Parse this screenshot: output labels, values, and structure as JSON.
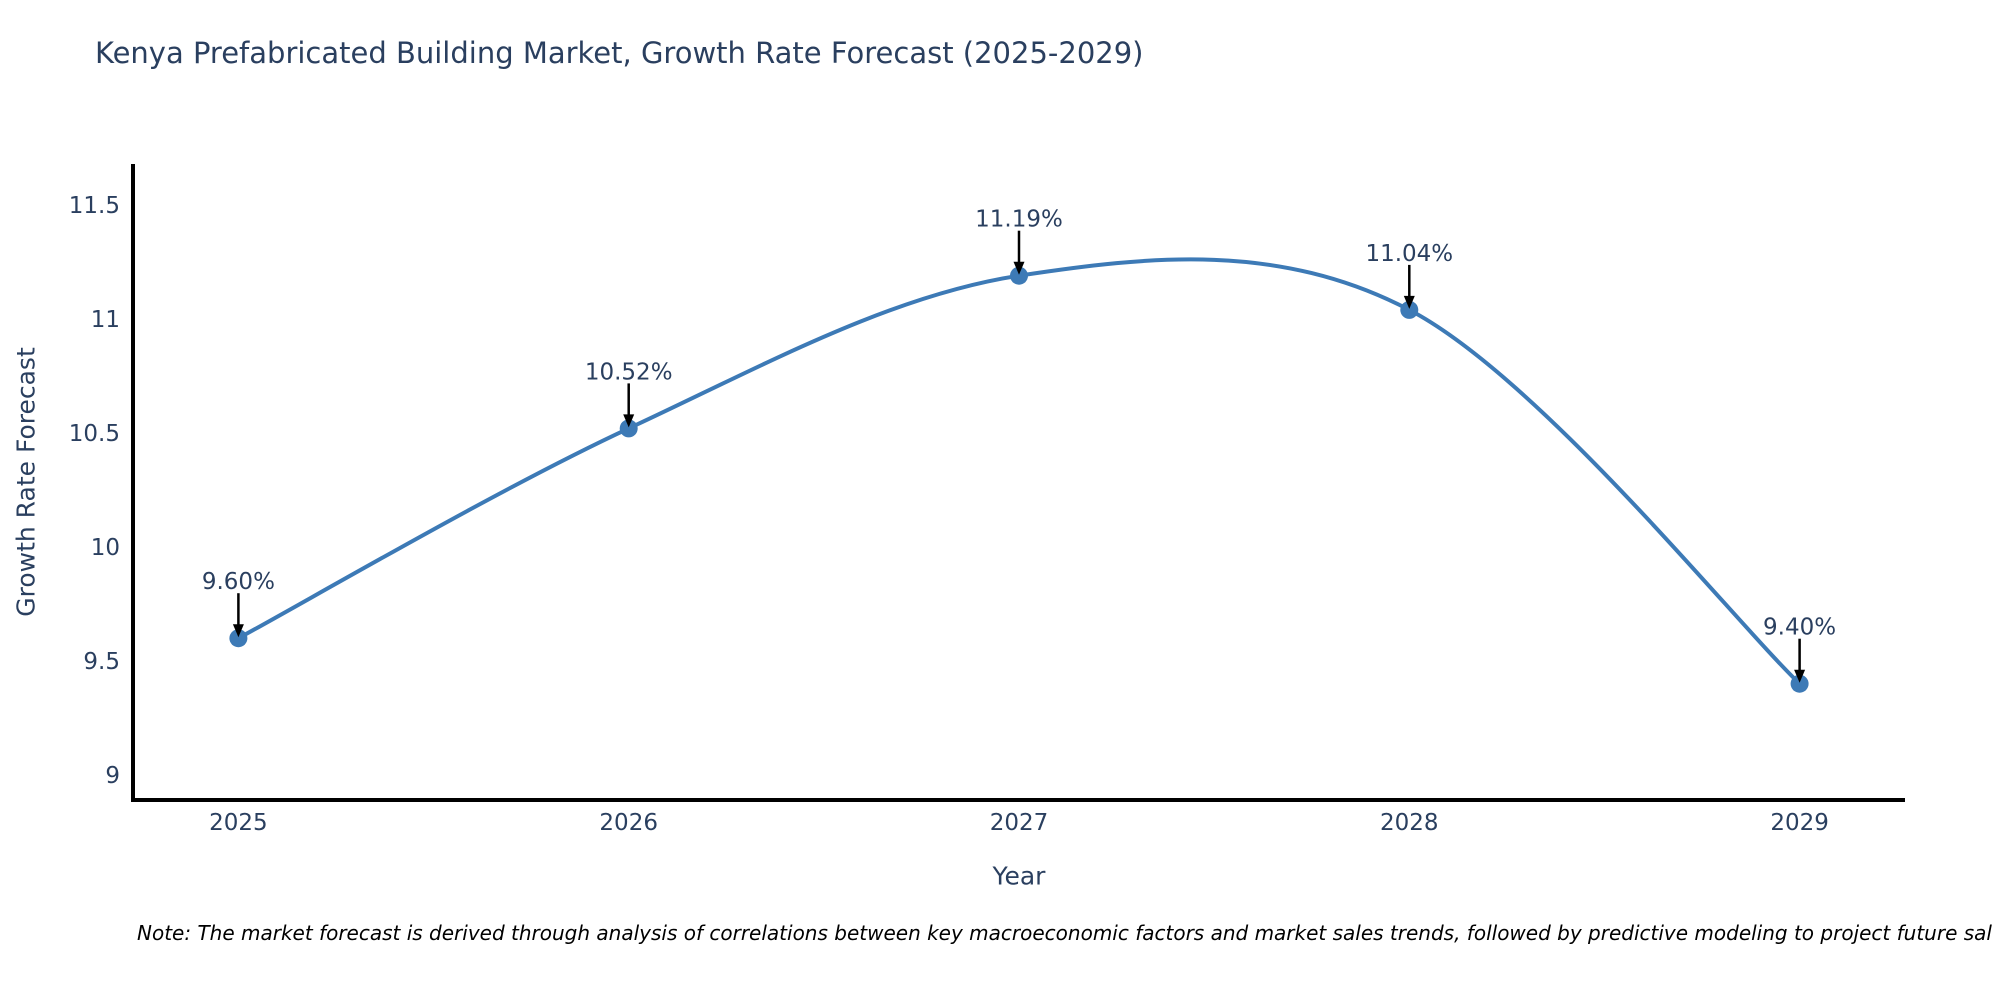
{
  "chart_data": {
    "type": "line",
    "title": "Kenya Prefabricated Building Market, Growth Rate Forecast (2025-2029)",
    "xlabel": "Year",
    "ylabel": "Growth Rate Forecast",
    "note": "Note: The market forecast is derived through analysis of correlations between key macroeconomic factors and market sales trends, followed by predictive modeling to project future sal",
    "x": [
      2025,
      2026,
      2027,
      2028,
      2029
    ],
    "values": [
      9.6,
      10.52,
      11.19,
      11.04,
      9.4
    ],
    "point_labels": [
      "9.60%",
      "10.52%",
      "11.19%",
      "11.04%",
      "9.40%"
    ],
    "x_ticks": [
      2025,
      2026,
      2027,
      2028,
      2029
    ],
    "y_ticks": [
      9,
      9.5,
      10,
      10.5,
      11,
      11.5
    ],
    "xlim": [
      2024.73,
      2029.27
    ],
    "ylim": [
      8.89,
      11.68
    ],
    "line_shape": "spline",
    "grid": false,
    "legend": "none",
    "colors": {
      "line": "#3d7ab6",
      "marker": "#3d7ab6",
      "axis": "#000000",
      "tick_text": "#2a3f5f",
      "title_text": "#2a3f5f",
      "annotation_text": "#2a3f5f",
      "arrow": "#000000",
      "note_text": "#000000",
      "background": "#ffffff"
    }
  }
}
